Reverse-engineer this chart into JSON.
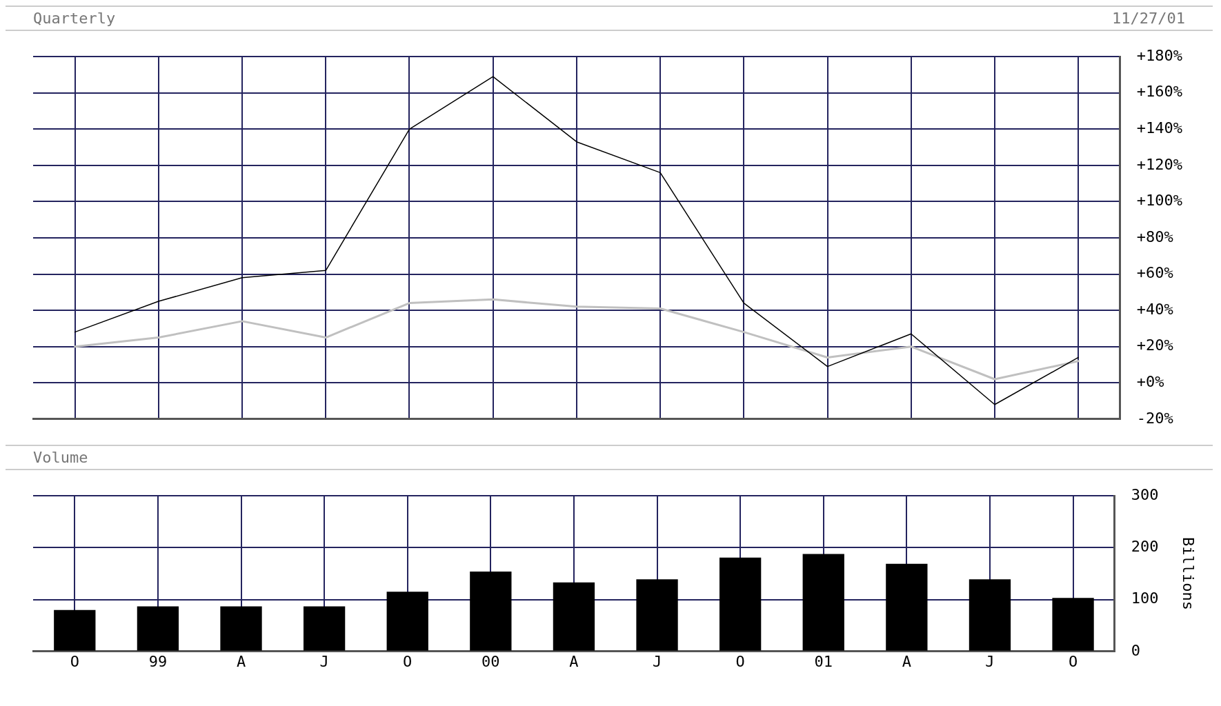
{
  "chart_data": [
    {
      "type": "line",
      "title": "Quarterly",
      "annotations": [
        "11/27/01"
      ],
      "categories": [
        null,
        null,
        null,
        null,
        null,
        null,
        null,
        null,
        null,
        null,
        null,
        null,
        null
      ],
      "series": [
        {
          "color": "#000000",
          "values": [
            28,
            45,
            58,
            62,
            140,
            169,
            133,
            116,
            44,
            9,
            27,
            -12,
            14
          ]
        },
        {
          "color": "#c0c0c0",
          "values": [
            20,
            25,
            34,
            25,
            44,
            46,
            42,
            41,
            28,
            14,
            20,
            2,
            12
          ]
        }
      ],
      "ylim": [
        -20,
        180
      ],
      "yticks": [
        {
          "value": -20,
          "label": "-20%"
        },
        {
          "value": 0,
          "label": "+0%"
        },
        {
          "value": 20,
          "label": "+20%"
        },
        {
          "value": 40,
          "label": "+40%"
        },
        {
          "value": 60,
          "label": "+60%"
        },
        {
          "value": 80,
          "label": "+80%"
        },
        {
          "value": 100,
          "label": "+100%"
        },
        {
          "value": 120,
          "label": "+120%"
        },
        {
          "value": 140,
          "label": "+140%"
        },
        {
          "value": 160,
          "label": "+160%"
        },
        {
          "value": 180,
          "label": "+180%"
        }
      ],
      "grid": true,
      "legend": false,
      "marker": "none",
      "tick_labels": "y"
    },
    {
      "type": "bar",
      "title": "Volume",
      "ylabel": "Billions",
      "categories": [
        "O",
        "99",
        "A",
        "J",
        "O",
        "00",
        "A",
        "J",
        "O",
        "01",
        "A",
        "J",
        "O"
      ],
      "values": [
        80,
        87,
        87,
        87,
        115,
        154,
        133,
        139,
        181,
        188,
        169,
        139,
        103
      ],
      "color": "#000000",
      "ylim": [
        0,
        300
      ],
      "yticks": [
        0,
        100,
        200,
        300
      ],
      "grid": true,
      "legend": false
    }
  ]
}
